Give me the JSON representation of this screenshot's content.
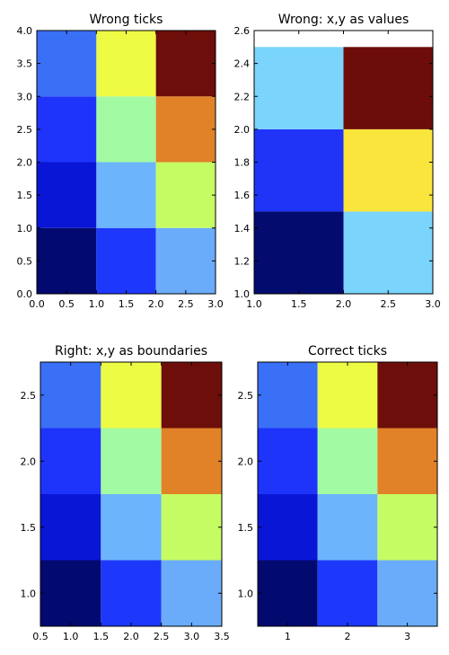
{
  "chart_data": [
    {
      "type": "heatmap",
      "title": "Wrong ticks",
      "xlim": [
        0.0,
        3.0
      ],
      "ylim": [
        0.0,
        4.0
      ],
      "xticks": [
        "0.0",
        "0.5",
        "1.0",
        "1.5",
        "2.0",
        "2.5",
        "3.0"
      ],
      "yticks": [
        "0.0",
        "0.5",
        "1.0",
        "1.5",
        "2.0",
        "2.5",
        "3.0",
        "3.5",
        "4.0"
      ],
      "x_edges": [
        0,
        1,
        2,
        3
      ],
      "y_edges": [
        0,
        1,
        2,
        3,
        4
      ],
      "colors": [
        [
          "#020a6f",
          "#1e38fb",
          "#6aacfa"
        ],
        [
          "#0a16d6",
          "#6cb4fb",
          "#c6fc63"
        ],
        [
          "#1e34fa",
          "#a2faa2",
          "#e28228"
        ],
        [
          "#3a70f6",
          "#eefb44",
          "#6e0e0a"
        ]
      ]
    },
    {
      "type": "heatmap",
      "title": "Wrong: x,y as values",
      "xlim": [
        1.0,
        3.0
      ],
      "ylim": [
        1.0,
        2.6
      ],
      "xticks": [
        "1.0",
        "1.5",
        "2.0",
        "2.5",
        "3.0"
      ],
      "yticks": [
        "1.0",
        "1.2",
        "1.4",
        "1.6",
        "1.8",
        "2.0",
        "2.2",
        "2.4",
        "2.6"
      ],
      "x_edges": [
        1,
        2,
        3
      ],
      "y_edges": [
        1.0,
        1.5,
        2.0,
        2.5
      ],
      "colors": [
        [
          "#030b6e",
          "#7ad4fb"
        ],
        [
          "#2034f8",
          "#fae53c"
        ],
        [
          "#7ad4fb",
          "#6c0d09"
        ]
      ]
    },
    {
      "type": "heatmap",
      "title": "Right: x,y as boundaries",
      "xlim": [
        0.5,
        3.5
      ],
      "ylim": [
        0.75,
        2.75
      ],
      "xticks": [
        "0.5",
        "1.0",
        "1.5",
        "2.0",
        "2.5",
        "3.0",
        "3.5"
      ],
      "yticks": [
        "1.0",
        "1.5",
        "2.0",
        "2.5"
      ],
      "x_edges": [
        0.5,
        1.5,
        2.5,
        3.5
      ],
      "y_edges": [
        0.75,
        1.25,
        1.75,
        2.25,
        2.75
      ],
      "colors": [
        [
          "#020a6f",
          "#1e38fb",
          "#6aacfa"
        ],
        [
          "#0a16d6",
          "#6cb4fb",
          "#c6fc63"
        ],
        [
          "#1e34fa",
          "#a2faa2",
          "#e28228"
        ],
        [
          "#3a70f6",
          "#eefb44",
          "#6e0e0a"
        ]
      ]
    },
    {
      "type": "heatmap",
      "title": "Correct ticks",
      "xlim": [
        0.5,
        3.5
      ],
      "ylim": [
        0.75,
        2.75
      ],
      "xticks": [
        "1",
        "2",
        "3"
      ],
      "yticks": [
        "1.0",
        "1.5",
        "2.0",
        "2.5"
      ],
      "x_edges": [
        0.5,
        1.5,
        2.5,
        3.5
      ],
      "y_edges": [
        0.75,
        1.25,
        1.75,
        2.25,
        2.75
      ],
      "colors": [
        [
          "#020a6f",
          "#1e38fb",
          "#6aacfa"
        ],
        [
          "#0a16d6",
          "#6cb4fb",
          "#c6fc63"
        ],
        [
          "#1e34fa",
          "#a2faa2",
          "#e28228"
        ],
        [
          "#3a70f6",
          "#eefb44",
          "#6e0e0a"
        ]
      ]
    }
  ]
}
